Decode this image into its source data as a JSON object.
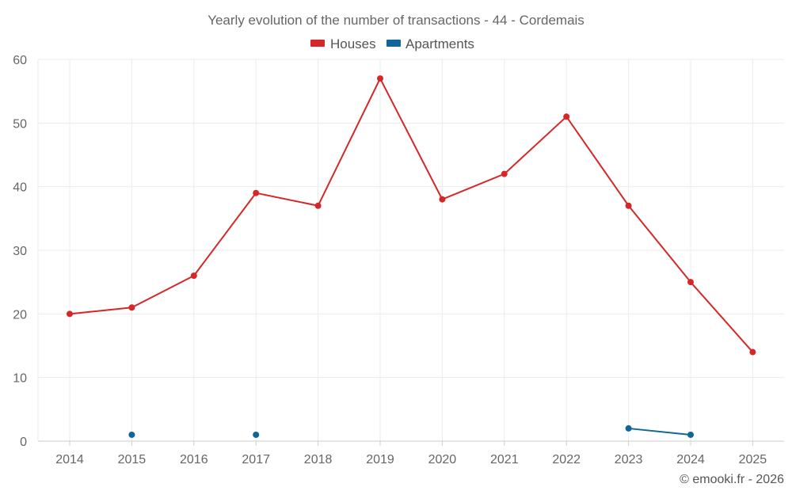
{
  "chart_data": {
    "type": "line",
    "title": "Yearly evolution of the number of transactions - 44 - Cordemais",
    "categories": [
      "2014",
      "2015",
      "2016",
      "2017",
      "2018",
      "2019",
      "2020",
      "2021",
      "2022",
      "2023",
      "2024",
      "2025"
    ],
    "series": [
      {
        "name": "Houses",
        "color": "#d62728",
        "values": [
          20,
          21,
          26,
          39,
          37,
          57,
          38,
          42,
          51,
          37,
          25,
          14
        ]
      },
      {
        "name": "Apartments",
        "color": "#0e6699",
        "values": [
          null,
          1,
          null,
          1,
          null,
          null,
          null,
          null,
          null,
          2,
          1,
          null
        ]
      }
    ],
    "ylim": [
      0,
      60
    ],
    "yticks": [
      0,
      10,
      20,
      30,
      40,
      50,
      60
    ],
    "xlabel": "",
    "ylabel": "",
    "grid": true,
    "legend": "top-center"
  },
  "credit": "© emooki.fr - 2026"
}
